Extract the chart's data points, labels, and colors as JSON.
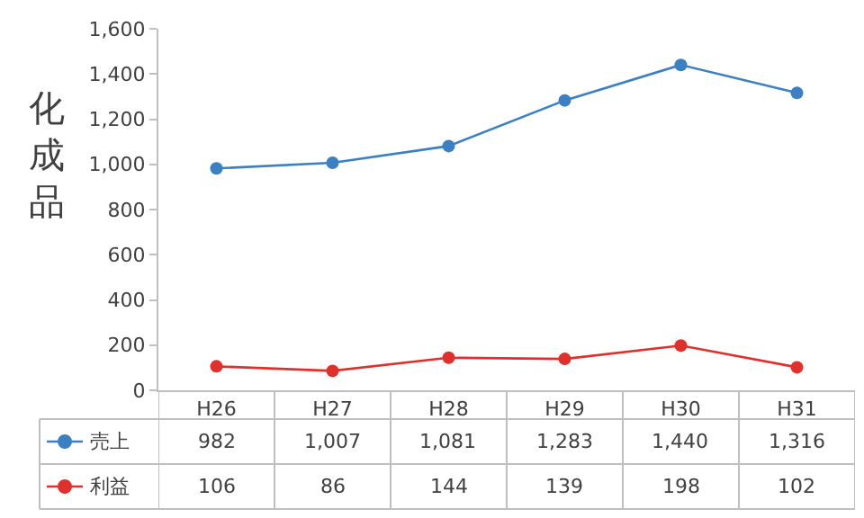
{
  "chart_data": {
    "type": "line",
    "ylabel": "化成品",
    "categories": [
      "H26",
      "H27",
      "H28",
      "H29",
      "H30",
      "H31"
    ],
    "series": [
      {
        "name": "売上",
        "color": "#3b80c3",
        "values": [
          982,
          1007,
          1081,
          1283,
          1440,
          1316
        ],
        "value_labels": [
          "982",
          "1,007",
          "1,081",
          "1,283",
          "1,440",
          "1,316"
        ]
      },
      {
        "name": "利益",
        "color": "#e0302c",
        "values": [
          106,
          86,
          144,
          139,
          198,
          102
        ],
        "value_labels": [
          "106",
          "86",
          "144",
          "139",
          "198",
          "102"
        ]
      }
    ],
    "ylim": [
      0,
      1600
    ],
    "yticks": [
      {
        "value": 0,
        "label": "0"
      },
      {
        "value": 200,
        "label": "200"
      },
      {
        "value": 400,
        "label": "400"
      },
      {
        "value": 600,
        "label": "600"
      },
      {
        "value": 800,
        "label": "800"
      },
      {
        "value": 1000,
        "label": "1,000"
      },
      {
        "value": 1200,
        "label": "1,200"
      },
      {
        "value": 1400,
        "label": "1,400"
      },
      {
        "value": 1600,
        "label": "1,600"
      }
    ],
    "marker": "circle",
    "line_style": "solid",
    "legend": "bottom",
    "grid": false
  }
}
